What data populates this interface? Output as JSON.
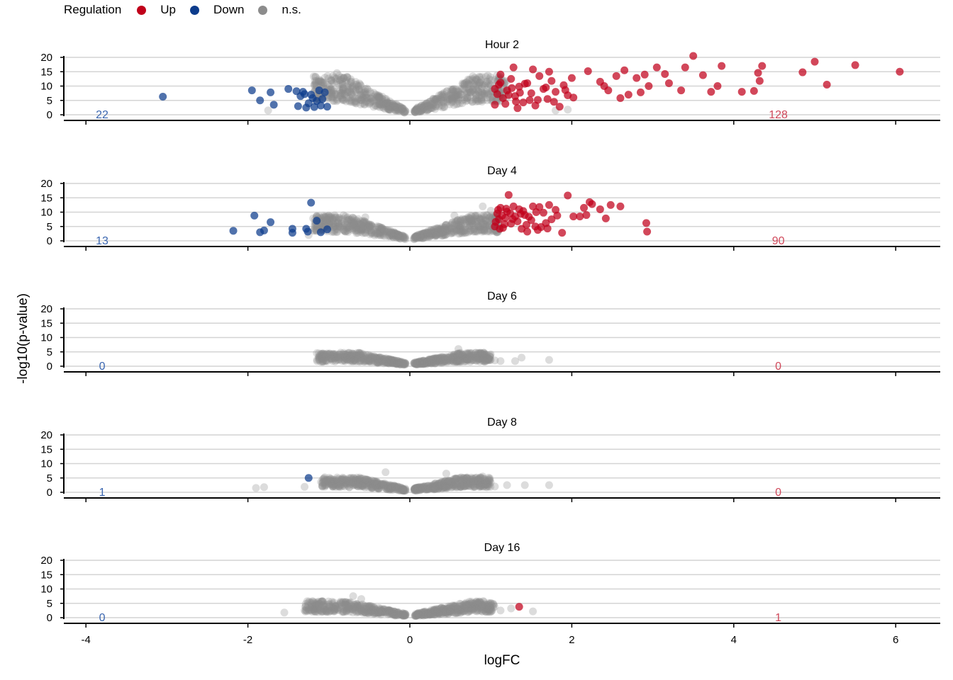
{
  "legend": {
    "title": "Regulation",
    "items": [
      {
        "label": "Up",
        "color": "#c0001a"
      },
      {
        "label": "Down",
        "color": "#0c3c8c"
      },
      {
        "label": "n.s.",
        "color": "#8c8c8c"
      }
    ]
  },
  "chart_data": {
    "type": "scatter",
    "xlabel": "logFC",
    "ylabel": "-log10(p-value)",
    "xlim": [
      -4.3,
      6.5
    ],
    "ylim": [
      0,
      20
    ],
    "xticks": [
      -4,
      -2,
      0,
      2,
      4,
      6
    ],
    "yticks": [
      0,
      5,
      10,
      15,
      20
    ],
    "grid": "horizontal",
    "legend_position": "top-left",
    "colors": {
      "up": "#c0001a",
      "down": "#0c3c8c",
      "ns": "#8c8c8c"
    },
    "panels": [
      {
        "title": "Hour 2",
        "down_count": "22",
        "up_count": "128",
        "ns_range": [
          -1.2,
          1.2
        ],
        "ns_max": 13,
        "ns_extra": [
          [
            -1.75,
            1.5
          ],
          [
            -0.95,
            13.5
          ],
          [
            -0.9,
            14.5
          ],
          [
            1.8,
            1.5
          ],
          [
            1.95,
            1.8
          ],
          [
            1.1,
            8
          ]
        ],
        "down": [
          [
            -3.05,
            6.3
          ],
          [
            -1.95,
            8.5
          ],
          [
            -1.85,
            5
          ],
          [
            -1.72,
            7.8
          ],
          [
            -1.68,
            3.5
          ],
          [
            -1.5,
            9
          ],
          [
            -1.38,
            3
          ],
          [
            -1.35,
            6.5
          ],
          [
            -1.32,
            8
          ],
          [
            -1.28,
            2.5
          ],
          [
            -1.25,
            4
          ],
          [
            -1.22,
            7
          ],
          [
            -1.18,
            2.7
          ],
          [
            -1.12,
            8.5
          ],
          [
            -1.1,
            3.2
          ],
          [
            -1.08,
            5.5
          ],
          [
            -1.05,
            7.8
          ],
          [
            -1.02,
            2.8
          ],
          [
            -1.3,
            7.2
          ],
          [
            -1.15,
            4.8
          ],
          [
            -1.4,
            8.2
          ],
          [
            -1.2,
            5.8
          ]
        ],
        "up": [
          [
            1.05,
            3.5
          ],
          [
            1.1,
            10.5
          ],
          [
            1.15,
            5.8
          ],
          [
            1.2,
            8.5
          ],
          [
            1.25,
            12.5
          ],
          [
            1.3,
            6.5
          ],
          [
            1.35,
            9.8
          ],
          [
            1.4,
            4.3
          ],
          [
            1.45,
            11
          ],
          [
            1.5,
            7.5
          ],
          [
            1.55,
            3.2
          ],
          [
            1.6,
            13.5
          ],
          [
            1.65,
            9
          ],
          [
            1.7,
            5.5
          ],
          [
            1.75,
            11.8
          ],
          [
            1.8,
            8
          ],
          [
            1.85,
            2.8
          ],
          [
            1.9,
            10.3
          ],
          [
            1.95,
            6.8
          ],
          [
            2.0,
            12.8
          ],
          [
            2.2,
            15.2
          ],
          [
            2.35,
            11.5
          ],
          [
            2.45,
            8.5
          ],
          [
            2.55,
            13.5
          ],
          [
            2.6,
            5.8
          ],
          [
            2.7,
            7
          ],
          [
            2.8,
            12.8
          ],
          [
            2.9,
            14
          ],
          [
            2.95,
            10
          ],
          [
            3.05,
            16.5
          ],
          [
            3.15,
            14.2
          ],
          [
            3.35,
            8.5
          ],
          [
            3.4,
            16.5
          ],
          [
            3.5,
            20.5
          ],
          [
            3.62,
            13.8
          ],
          [
            3.72,
            8
          ],
          [
            3.8,
            10
          ],
          [
            3.85,
            17
          ],
          [
            4.1,
            8
          ],
          [
            4.25,
            8.3
          ],
          [
            4.3,
            14.6
          ],
          [
            4.32,
            11.8
          ],
          [
            4.35,
            17
          ],
          [
            4.85,
            14.8
          ],
          [
            5.0,
            18.5
          ],
          [
            5.15,
            10.5
          ],
          [
            5.5,
            17.3
          ],
          [
            6.05,
            15
          ],
          [
            1.12,
            14
          ],
          [
            1.28,
            16.5
          ],
          [
            1.52,
            15.8
          ],
          [
            1.72,
            15
          ],
          [
            1.68,
            9.5
          ],
          [
            1.33,
            2.3
          ],
          [
            1.58,
            5.2
          ],
          [
            1.78,
            4.5
          ],
          [
            1.92,
            8.6
          ],
          [
            2.02,
            6
          ],
          [
            2.4,
            10
          ],
          [
            2.65,
            15.5
          ],
          [
            2.85,
            7.8
          ],
          [
            3.2,
            11
          ],
          [
            1.05,
            9
          ],
          [
            1.08,
            7.2
          ],
          [
            1.12,
            11.2
          ],
          [
            1.18,
            3.8
          ],
          [
            1.22,
            6.9
          ],
          [
            1.26,
            9.3
          ],
          [
            1.31,
            4.6
          ],
          [
            1.36,
            7.7
          ],
          [
            1.42,
            10.8
          ],
          [
            1.48,
            5.1
          ]
        ]
      },
      {
        "title": "Day 4",
        "down_count": "13",
        "up_count": "90",
        "ns_range": [
          -1.2,
          1.1
        ],
        "ns_max": 8.5,
        "ns_extra": [
          [
            -1.25,
            2
          ],
          [
            -0.95,
            6
          ],
          [
            -0.75,
            7.5
          ],
          [
            -0.55,
            8.2
          ],
          [
            0.9,
            12
          ],
          [
            0.95,
            9
          ],
          [
            0.55,
            8.8
          ],
          [
            1.0,
            10.5
          ]
        ],
        "down": [
          [
            -2.18,
            3.5
          ],
          [
            -1.92,
            8.8
          ],
          [
            -1.85,
            3
          ],
          [
            -1.8,
            3.6
          ],
          [
            -1.72,
            6.5
          ],
          [
            -1.45,
            4.2
          ],
          [
            -1.45,
            2.8
          ],
          [
            -1.28,
            4.2
          ],
          [
            -1.26,
            3.2
          ],
          [
            -1.22,
            13.3
          ],
          [
            -1.15,
            7
          ],
          [
            -1.1,
            3
          ],
          [
            -1.02,
            4
          ]
        ],
        "up": [
          [
            1.05,
            5
          ],
          [
            1.08,
            9.5
          ],
          [
            1.1,
            7.5
          ],
          [
            1.12,
            11.5
          ],
          [
            1.15,
            4.5
          ],
          [
            1.18,
            8
          ],
          [
            1.2,
            10.2
          ],
          [
            1.22,
            16
          ],
          [
            1.25,
            6
          ],
          [
            1.28,
            12
          ],
          [
            1.3,
            8.5
          ],
          [
            1.35,
            11
          ],
          [
            1.38,
            4.2
          ],
          [
            1.42,
            9
          ],
          [
            1.45,
            3.2
          ],
          [
            1.5,
            7.2
          ],
          [
            1.52,
            12
          ],
          [
            1.55,
            5
          ],
          [
            1.6,
            11.8
          ],
          [
            1.65,
            9.8
          ],
          [
            1.7,
            4.3
          ],
          [
            1.72,
            12.5
          ],
          [
            1.75,
            7.5
          ],
          [
            1.8,
            10.8
          ],
          [
            1.88,
            2.8
          ],
          [
            1.95,
            15.8
          ],
          [
            2.02,
            8.5
          ],
          [
            2.1,
            8.5
          ],
          [
            2.15,
            11.5
          ],
          [
            2.18,
            9
          ],
          [
            2.22,
            13.5
          ],
          [
            2.35,
            11
          ],
          [
            2.42,
            7.8
          ],
          [
            2.48,
            12.5
          ],
          [
            2.6,
            12
          ],
          [
            2.92,
            6.2
          ],
          [
            2.93,
            3.2
          ],
          [
            1.06,
            6.6
          ],
          [
            1.09,
            10.8
          ],
          [
            1.14,
            8.8
          ],
          [
            1.17,
            5.8
          ],
          [
            1.24,
            9.6
          ],
          [
            1.33,
            6.8
          ],
          [
            1.4,
            10.4
          ],
          [
            1.47,
            8.4
          ],
          [
            1.58,
            3.8
          ],
          [
            1.68,
            6.2
          ],
          [
            1.82,
            8.8
          ],
          [
            2.25,
            12.8
          ],
          [
            1.11,
            4.2
          ],
          [
            1.19,
            11.2
          ],
          [
            1.27,
            7.6
          ],
          [
            1.37,
            9.4
          ],
          [
            1.44,
            5.6
          ],
          [
            1.56,
            10
          ],
          [
            1.62,
            4.8
          ]
        ]
      },
      {
        "title": "Day 6",
        "down_count": "0",
        "up_count": "0",
        "ns_range": [
          -1.15,
          1.0
        ],
        "ns_max": 4.5,
        "ns_extra": [
          [
            -1.12,
            2.5
          ],
          [
            -1.08,
            1.5
          ],
          [
            0.6,
            6
          ],
          [
            0.95,
            4
          ],
          [
            1.05,
            2
          ],
          [
            1.12,
            1.8
          ],
          [
            1.3,
            1.8
          ],
          [
            1.38,
            3
          ],
          [
            1.72,
            2.2
          ],
          [
            0.9,
            3
          ]
        ],
        "down": [],
        "up": []
      },
      {
        "title": "Day 8",
        "down_count": "1",
        "up_count": "0",
        "ns_range": [
          -1.1,
          1.0
        ],
        "ns_max": 5,
        "ns_extra": [
          [
            -1.9,
            1.5
          ],
          [
            -1.8,
            1.8
          ],
          [
            -1.3,
            1.9
          ],
          [
            -0.3,
            7
          ],
          [
            0.45,
            6.5
          ],
          [
            0.9,
            5.5
          ],
          [
            1.2,
            2.5
          ],
          [
            1.42,
            2.5
          ],
          [
            1.72,
            2.5
          ],
          [
            1.05,
            2
          ]
        ],
        "down": [
          [
            -1.25,
            5
          ]
        ],
        "up": []
      },
      {
        "title": "Day 16",
        "down_count": "0",
        "up_count": "1",
        "ns_range": [
          -1.3,
          1.05
        ],
        "ns_max": 5.5,
        "ns_extra": [
          [
            -1.55,
            1.8
          ],
          [
            -1.3,
            2.5
          ],
          [
            -1.18,
            2.8
          ],
          [
            -0.7,
            7.5
          ],
          [
            -0.6,
            6.5
          ],
          [
            0.95,
            3
          ],
          [
            1.12,
            2.5
          ],
          [
            1.25,
            3.2
          ],
          [
            1.52,
            2.2
          ],
          [
            -1.0,
            2
          ]
        ],
        "down": [],
        "up": [
          [
            1.35,
            3.8
          ]
        ]
      }
    ]
  }
}
